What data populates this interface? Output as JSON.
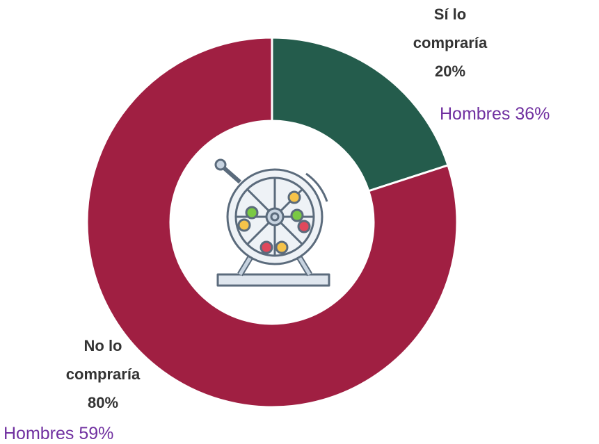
{
  "chart_data": {
    "type": "pie",
    "categories": [
      "Sí lo compraría",
      "No lo compraría"
    ],
    "values": [
      20,
      80
    ],
    "value_labels": [
      "20%",
      "80%"
    ],
    "colors": [
      "#245c4c",
      "#a01f42"
    ],
    "annotations": [
      "Hombres 36%",
      "Hombres 59%"
    ]
  }
}
